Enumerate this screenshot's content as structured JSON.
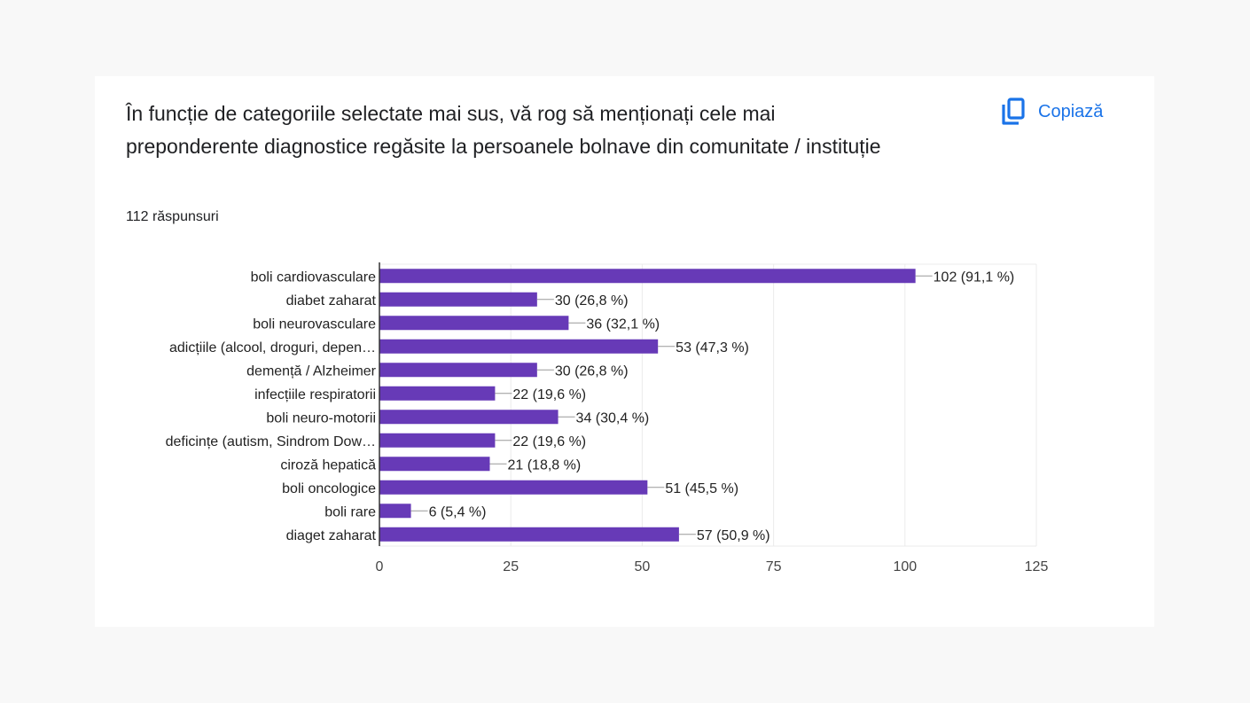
{
  "question": {
    "title": "În funcție de categoriile selectate mai sus, vă rog să menționați cele mai preponderente diagnostice regăsite la persoanele bolnave din comunitate / instituție",
    "responses": "112 răspunsuri",
    "copy_label": "Copiază",
    "copy_icon": "copy-icon"
  },
  "colors": {
    "bar": "#673ab7",
    "accent": "#1a73e8"
  },
  "chart_data": {
    "type": "bar",
    "orientation": "horizontal",
    "categories": [
      "boli cardiovasculare",
      "diabet zaharat",
      "boli neurovasculare",
      "adicțiile (alcool, droguri, depen…",
      "demență / Alzheimer",
      "infecțiile respiratorii",
      "boli neuro-motorii",
      "deficințe (autism, Sindrom Dow…",
      "ciroză hepatică",
      "boli oncologice",
      "boli rare",
      "diaget zaharat"
    ],
    "values": [
      102,
      30,
      36,
      53,
      30,
      22,
      34,
      22,
      21,
      51,
      6,
      57
    ],
    "data_labels": [
      "102 (91,1 %)",
      "30 (26,8 %)",
      "36 (32,1 %)",
      "53 (47,3 %)",
      "30 (26,8 %)",
      "22 (19,6 %)",
      "34 (30,4 %)",
      "22 (19,6 %)",
      "21 (18,8 %)",
      "51 (45,5 %)",
      "6 (5,4 %)",
      "57 (50,9 %)"
    ],
    "xlim": [
      0,
      125
    ],
    "xticks": [
      0,
      25,
      50,
      75,
      100,
      125
    ],
    "grid": true,
    "title": "",
    "xlabel": "",
    "ylabel": ""
  }
}
